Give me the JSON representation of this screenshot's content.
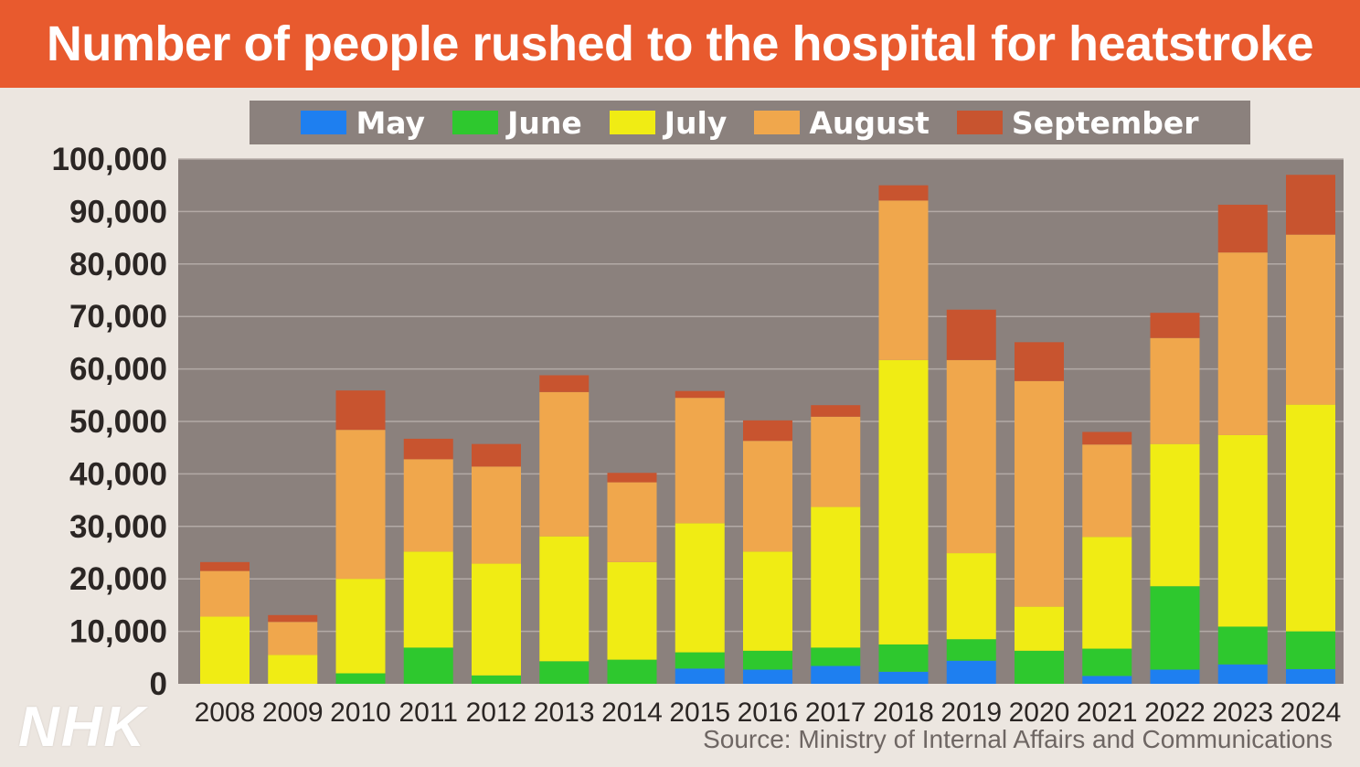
{
  "title": "Number of people rushed to the hospital for heatstroke",
  "source": "Source: Ministry of Internal Affairs and Communications",
  "logo": "NHK",
  "colors": {
    "title_bg": "#e85a2e",
    "plot_bg": "#8b817d",
    "May": "#1e7ff0",
    "June": "#2ec82e",
    "July": "#f0ec14",
    "August": "#f0a74c",
    "September": "#c8542f"
  },
  "chart_data": {
    "type": "bar",
    "stacked": true,
    "title": "Number of people rushed to the hospital for heatstroke",
    "xlabel": "",
    "ylabel": "",
    "ylim": [
      0,
      100000
    ],
    "yticks": [
      0,
      10000,
      20000,
      30000,
      40000,
      50000,
      60000,
      70000,
      80000,
      90000,
      100000
    ],
    "ytick_labels": [
      "0",
      "10,000",
      "20,000",
      "30,000",
      "40,000",
      "50,000",
      "60,000",
      "70,000",
      "80,000",
      "90,000",
      "100,000"
    ],
    "grid": true,
    "legend_position": "top",
    "categories": [
      "2008",
      "2009",
      "2010",
      "2011",
      "2012",
      "2013",
      "2014",
      "2015",
      "2016",
      "2017",
      "2018",
      "2019",
      "2020",
      "2021",
      "2022",
      "2023",
      "2024"
    ],
    "series": [
      {
        "name": "May",
        "values": [
          0,
          0,
          0,
          0,
          0,
          0,
          0,
          2900,
          2700,
          3400,
          2300,
          4400,
          0,
          1500,
          2700,
          3700,
          2800
        ]
      },
      {
        "name": "June",
        "values": [
          0,
          0,
          2000,
          6900,
          1600,
          4300,
          4600,
          3100,
          3600,
          3500,
          5200,
          4100,
          6300,
          5200,
          15900,
          7200,
          7200
        ]
      },
      {
        "name": "July",
        "values": [
          12800,
          5500,
          18000,
          18300,
          21300,
          23800,
          18600,
          24600,
          18900,
          26800,
          54200,
          16400,
          8400,
          21300,
          27100,
          36500,
          43200
        ]
      },
      {
        "name": "August",
        "values": [
          8700,
          6300,
          28400,
          17600,
          18500,
          27500,
          15200,
          23900,
          21100,
          17200,
          30400,
          36800,
          43000,
          17600,
          20200,
          34800,
          32400
        ]
      },
      {
        "name": "September",
        "values": [
          1700,
          1300,
          7500,
          3900,
          4300,
          3200,
          1800,
          1300,
          3900,
          2200,
          2900,
          9600,
          7400,
          2400,
          4800,
          9100,
          11400
        ]
      }
    ]
  }
}
